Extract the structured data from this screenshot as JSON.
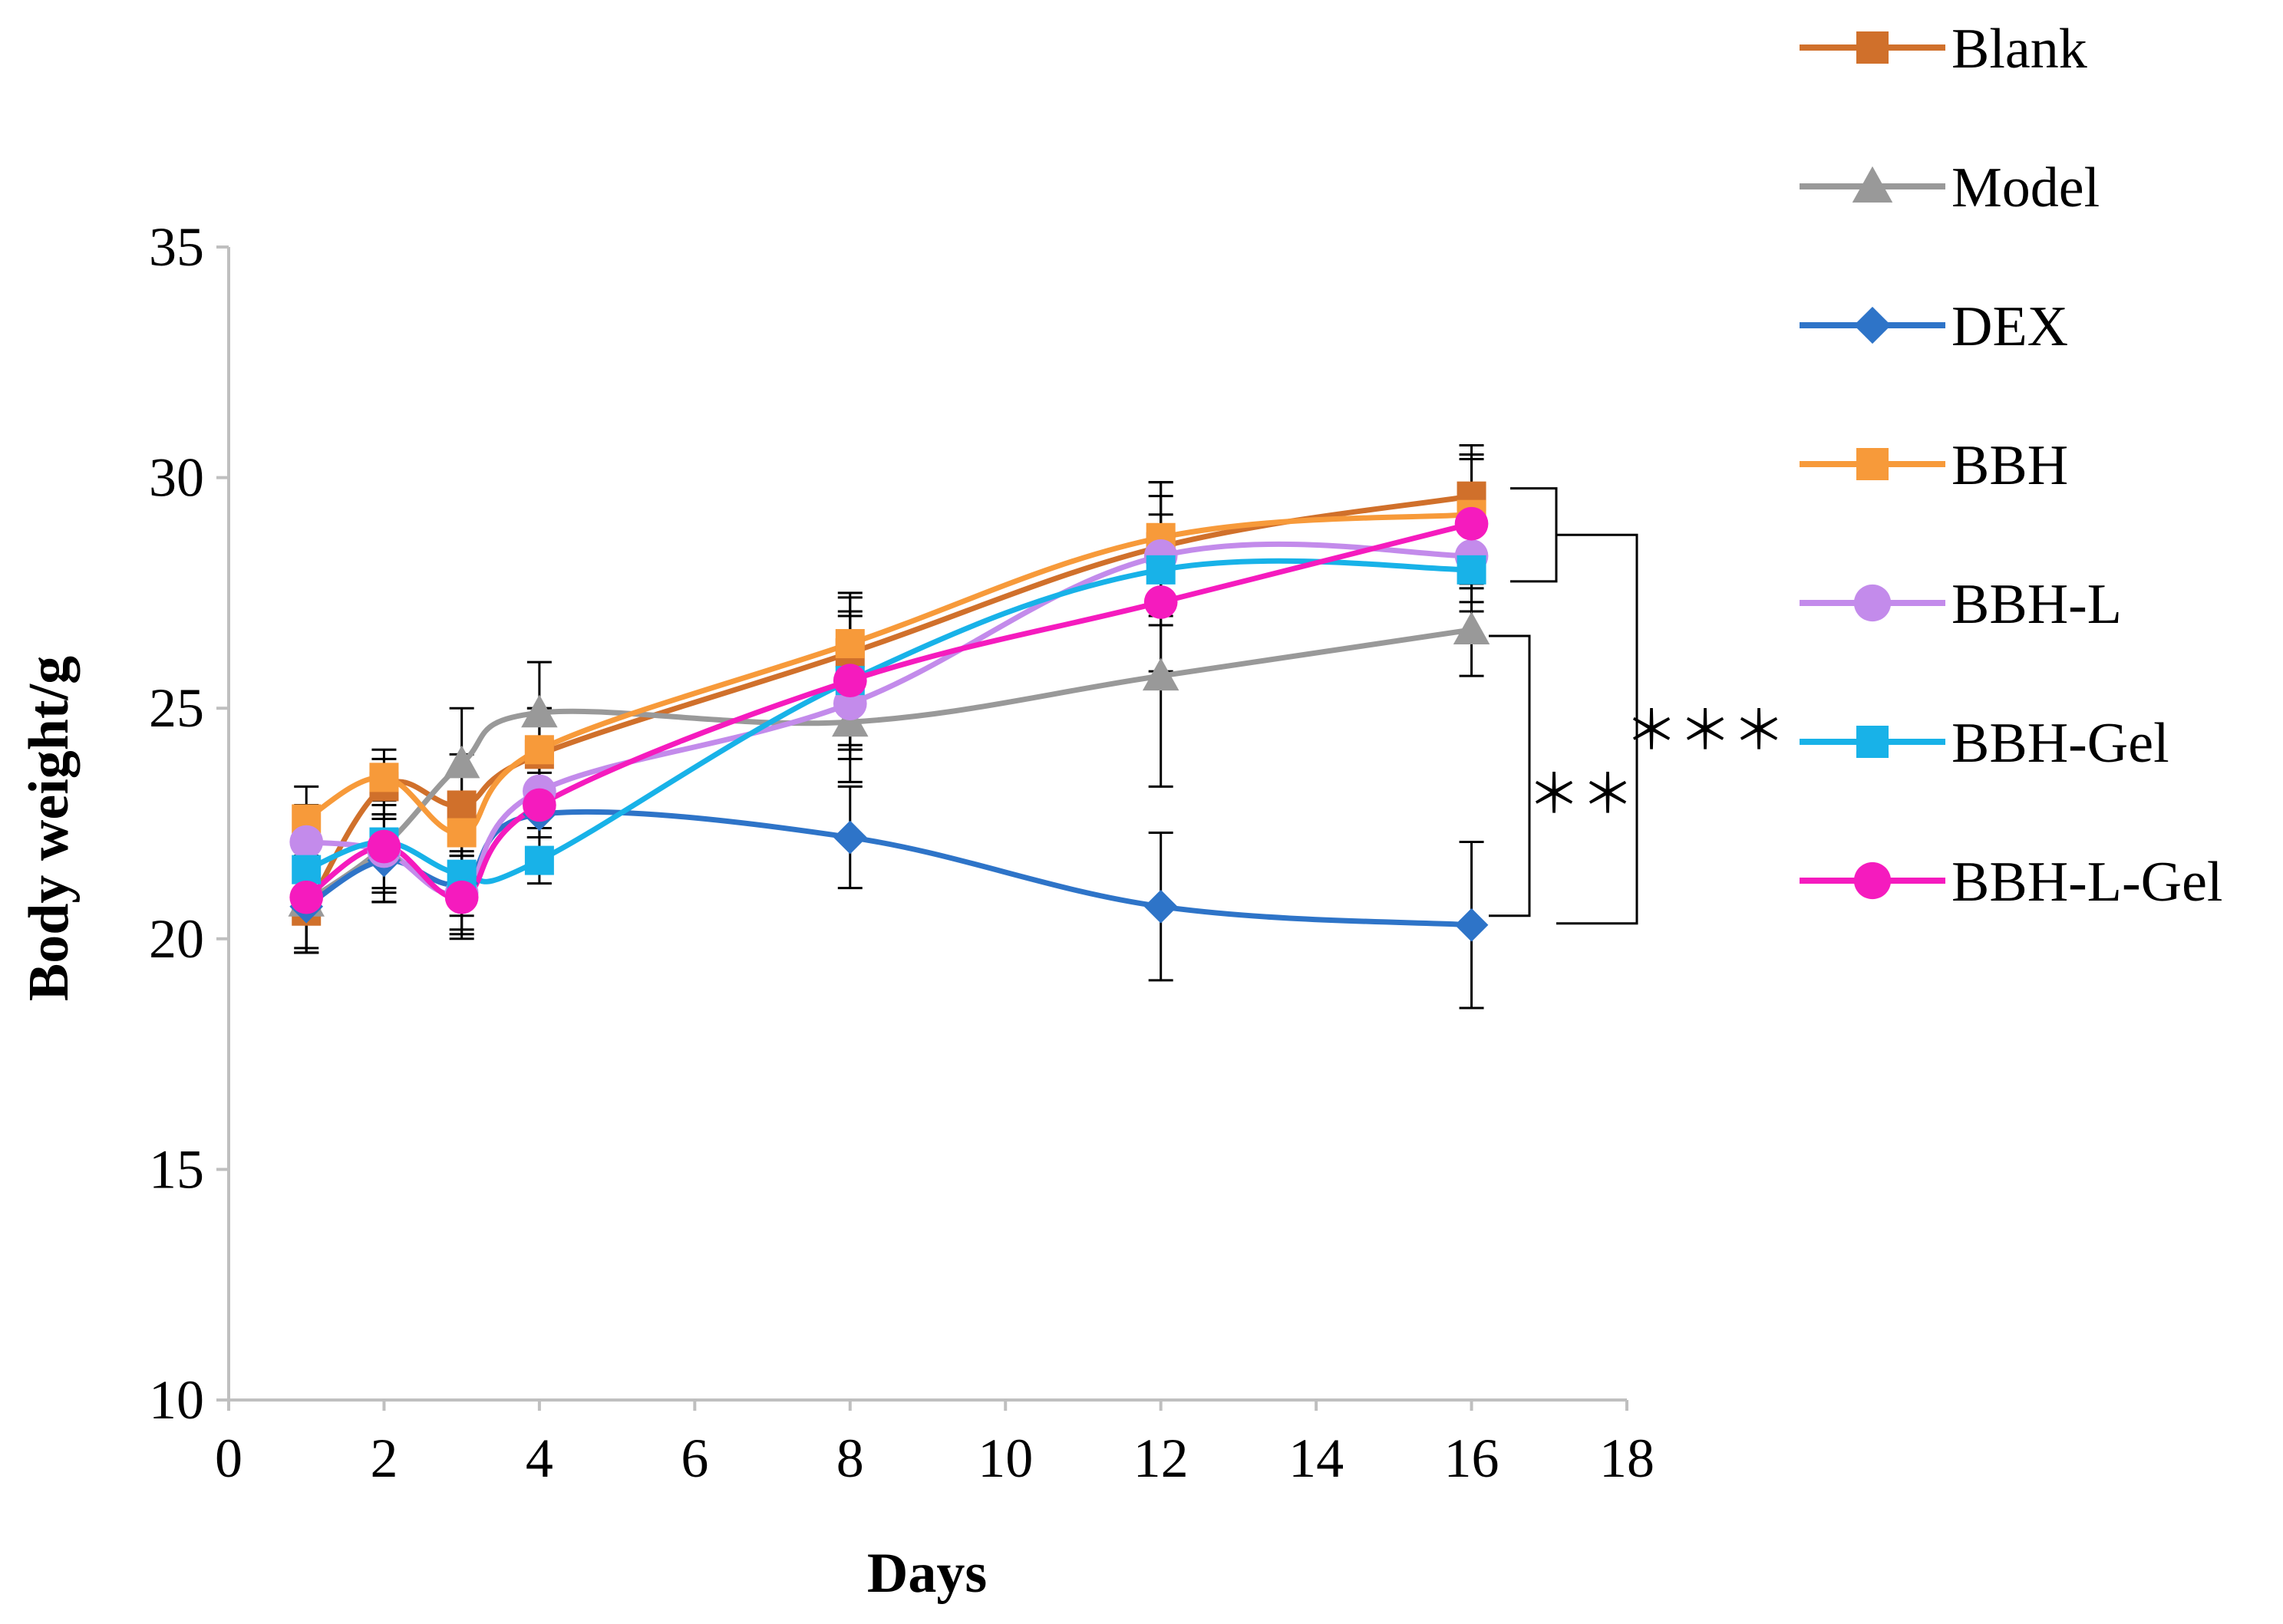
{
  "chart_data": {
    "type": "line",
    "title": "",
    "xlabel": "Days",
    "ylabel": "Body weight/g",
    "xlim": [
      0,
      18
    ],
    "ylim": [
      10,
      35
    ],
    "x_ticks": [
      "0",
      "2",
      "4",
      "6",
      "8",
      "10",
      "12",
      "14",
      "16",
      "18"
    ],
    "y_ticks": [
      "10",
      "15",
      "20",
      "25",
      "30",
      "35"
    ],
    "x": [
      1,
      2,
      3,
      4,
      8,
      12,
      16
    ],
    "legend_position": "right",
    "series": [
      {
        "name": "Blank",
        "color": "#D0702B",
        "marker": "square",
        "values": [
          20.6,
          23.3,
          22.9,
          24.0,
          26.2,
          28.5,
          29.6
        ],
        "errors": [
          0.9,
          0.6,
          1.1,
          1.0,
          1.2,
          1.4,
          1.1
        ]
      },
      {
        "name": "Model",
        "color": "#999999",
        "marker": "triangle",
        "values": [
          20.8,
          22.0,
          23.8,
          24.9,
          24.7,
          25.7,
          26.7
        ],
        "errors": [
          1.0,
          1.2,
          1.2,
          1.1,
          1.3,
          2.4,
          1.0
        ]
      },
      {
        "name": "DEX",
        "color": "#2E74C8",
        "marker": "diamond",
        "values": [
          20.7,
          21.7,
          21.2,
          22.7,
          22.2,
          20.7,
          20.3
        ],
        "errors": [
          1.0,
          0.9,
          1.0,
          0.5,
          1.1,
          1.6,
          1.8
        ]
      },
      {
        "name": "BBH",
        "color": "#F79A3A",
        "marker": "square",
        "values": [
          22.6,
          23.5,
          22.3,
          24.1,
          26.4,
          28.7,
          29.2
        ],
        "errors": [
          0.7,
          0.6,
          0.8,
          0.9,
          1.1,
          1.2,
          1.3
        ]
      },
      {
        "name": "BBH-L",
        "color": "#C38BEB",
        "marker": "circle",
        "values": [
          22.1,
          21.9,
          21.0,
          23.2,
          25.1,
          28.3,
          28.3
        ],
        "errors": [
          0.8,
          1.1,
          0.9,
          0.8,
          1.2,
          1.3,
          1.0
        ]
      },
      {
        "name": "BBH-Gel",
        "color": "#18B2E8",
        "marker": "square",
        "values": [
          21.5,
          22.1,
          21.4,
          21.7,
          25.6,
          28.0,
          28.0
        ],
        "errors": [
          0.8,
          1.0,
          0.9,
          0.5,
          1.4,
          1.2,
          0.9
        ]
      },
      {
        "name": "BBH-L-Gel",
        "color": "#F51BBE",
        "marker": "circle",
        "values": [
          20.9,
          22.0,
          20.9,
          22.9,
          25.6,
          27.3,
          29.0
        ],
        "errors": [
          1.2,
          1.0,
          0.9,
          0.7,
          1.5,
          1.5,
          1.4
        ]
      }
    ],
    "annotations": [
      {
        "text": "＊＊",
        "group_a": [
          "Model"
        ],
        "group_b": [
          "DEX"
        ]
      },
      {
        "text": "＊＊＊",
        "group_a": [
          "Blank",
          "BBH",
          "BBH-L",
          "BBH-Gel",
          "BBH-L-Gel"
        ],
        "group_b": [
          "DEX"
        ]
      }
    ]
  }
}
